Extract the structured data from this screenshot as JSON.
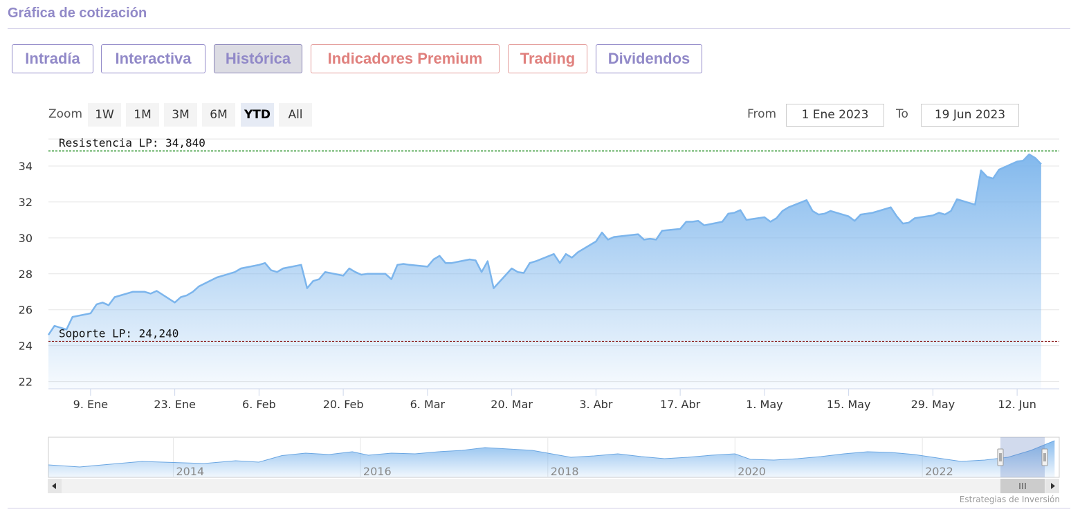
{
  "header": {
    "title": "Gráfica de cotización"
  },
  "tabs": [
    {
      "label": "Intradía",
      "style": "normal"
    },
    {
      "label": "Interactiva",
      "style": "normal"
    },
    {
      "label": "Histórica",
      "style": "active"
    },
    {
      "label": "Indicadores Premium",
      "style": "premium"
    },
    {
      "label": "Trading",
      "style": "premium"
    },
    {
      "label": "Dividendos",
      "style": "normal"
    }
  ],
  "range_selector": {
    "zoom_label": "Zoom",
    "buttons": [
      "1W",
      "1M",
      "3M",
      "6M",
      "YTD",
      "All"
    ],
    "selected": "YTD",
    "from_label": "From",
    "from_value": "1 Ene 2023",
    "to_label": "To",
    "to_value": "19 Jun 2023"
  },
  "credit": "Estrategias de Inversión",
  "colors": {
    "accent": "#9189c8",
    "premium": "#e0807d",
    "series_line": "#7cb5ec",
    "resistance": "#1a8a1a",
    "support": "#8b1a1a"
  },
  "chart_data": {
    "type": "area",
    "title": "",
    "xlabel": "",
    "ylabel": "",
    "ylim": [
      21.6,
      35.5
    ],
    "yticks": [
      22,
      24,
      26,
      28,
      30,
      32,
      34
    ],
    "x_start": "2023-01-02",
    "x_end": "2023-06-19",
    "xtick_labels": [
      {
        "date": "2023-01-09",
        "label": "9. Ene"
      },
      {
        "date": "2023-01-23",
        "label": "23. Ene"
      },
      {
        "date": "2023-02-06",
        "label": "6. Feb"
      },
      {
        "date": "2023-02-20",
        "label": "20. Feb"
      },
      {
        "date": "2023-03-06",
        "label": "6. Mar"
      },
      {
        "date": "2023-03-20",
        "label": "20. Mar"
      },
      {
        "date": "2023-04-03",
        "label": "3. Abr"
      },
      {
        "date": "2023-04-17",
        "label": "17. Abr"
      },
      {
        "date": "2023-05-01",
        "label": "1. May"
      },
      {
        "date": "2023-05-15",
        "label": "15. May"
      },
      {
        "date": "2023-05-29",
        "label": "29. May"
      },
      {
        "date": "2023-06-12",
        "label": "12. Jun"
      }
    ],
    "plot_lines": [
      {
        "label": "Resistencia LP: 34,840",
        "value": 34.84,
        "color": "#1a8a1a"
      },
      {
        "label": "Soporte LP: 24,240",
        "value": 24.24,
        "color": "#8b1a1a"
      }
    ],
    "series": [
      {
        "values": [
          [
            "2023-01-02",
            24.6
          ],
          [
            "2023-01-03",
            25.1
          ],
          [
            "2023-01-04",
            25.0
          ],
          [
            "2023-01-05",
            24.9
          ],
          [
            "2023-01-06",
            25.6
          ],
          [
            "2023-01-09",
            25.8
          ],
          [
            "2023-01-10",
            26.3
          ],
          [
            "2023-01-11",
            26.4
          ],
          [
            "2023-01-12",
            26.25
          ],
          [
            "2023-01-13",
            26.7
          ],
          [
            "2023-01-16",
            27.0
          ],
          [
            "2023-01-17",
            27.0
          ],
          [
            "2023-01-18",
            27.0
          ],
          [
            "2023-01-19",
            26.9
          ],
          [
            "2023-01-20",
            27.05
          ],
          [
            "2023-01-23",
            26.4
          ],
          [
            "2023-01-24",
            26.7
          ],
          [
            "2023-01-25",
            26.8
          ],
          [
            "2023-01-26",
            27.0
          ],
          [
            "2023-01-27",
            27.3
          ],
          [
            "2023-01-30",
            27.8
          ],
          [
            "2023-01-31",
            27.9
          ],
          [
            "2023-02-01",
            28.0
          ],
          [
            "2023-02-02",
            28.1
          ],
          [
            "2023-02-03",
            28.3
          ],
          [
            "2023-02-06",
            28.5
          ],
          [
            "2023-02-07",
            28.6
          ],
          [
            "2023-02-08",
            28.2
          ],
          [
            "2023-02-09",
            28.1
          ],
          [
            "2023-02-10",
            28.3
          ],
          [
            "2023-02-13",
            28.5
          ],
          [
            "2023-02-14",
            27.2
          ],
          [
            "2023-02-15",
            27.6
          ],
          [
            "2023-02-16",
            27.7
          ],
          [
            "2023-02-17",
            28.1
          ],
          [
            "2023-02-20",
            27.9
          ],
          [
            "2023-02-21",
            28.3
          ],
          [
            "2023-02-22",
            28.1
          ],
          [
            "2023-02-23",
            27.95
          ],
          [
            "2023-02-24",
            28.0
          ],
          [
            "2023-02-27",
            28.0
          ],
          [
            "2023-02-28",
            27.7
          ],
          [
            "2023-03-01",
            28.5
          ],
          [
            "2023-03-02",
            28.55
          ],
          [
            "2023-03-03",
            28.5
          ],
          [
            "2023-03-06",
            28.4
          ],
          [
            "2023-03-07",
            28.8
          ],
          [
            "2023-03-08",
            29.0
          ],
          [
            "2023-03-09",
            28.6
          ],
          [
            "2023-03-10",
            28.6
          ],
          [
            "2023-03-13",
            28.8
          ],
          [
            "2023-03-14",
            28.75
          ],
          [
            "2023-03-15",
            28.1
          ],
          [
            "2023-03-16",
            28.7
          ],
          [
            "2023-03-17",
            27.2
          ],
          [
            "2023-03-20",
            28.3
          ],
          [
            "2023-03-21",
            28.1
          ],
          [
            "2023-03-22",
            28.05
          ],
          [
            "2023-03-23",
            28.6
          ],
          [
            "2023-03-24",
            28.7
          ],
          [
            "2023-03-27",
            29.1
          ],
          [
            "2023-03-28",
            28.6
          ],
          [
            "2023-03-29",
            29.1
          ],
          [
            "2023-03-30",
            28.9
          ],
          [
            "2023-03-31",
            29.2
          ],
          [
            "2023-04-03",
            29.8
          ],
          [
            "2023-04-04",
            30.3
          ],
          [
            "2023-04-05",
            29.9
          ],
          [
            "2023-04-06",
            30.05
          ],
          [
            "2023-04-10",
            30.2
          ],
          [
            "2023-04-11",
            29.9
          ],
          [
            "2023-04-12",
            29.95
          ],
          [
            "2023-04-13",
            29.9
          ],
          [
            "2023-04-14",
            30.4
          ],
          [
            "2023-04-17",
            30.5
          ],
          [
            "2023-04-18",
            30.9
          ],
          [
            "2023-04-19",
            30.9
          ],
          [
            "2023-04-20",
            30.95
          ],
          [
            "2023-04-21",
            30.7
          ],
          [
            "2023-04-24",
            30.9
          ],
          [
            "2023-04-25",
            31.35
          ],
          [
            "2023-04-26",
            31.4
          ],
          [
            "2023-04-27",
            31.55
          ],
          [
            "2023-04-28",
            31.0
          ],
          [
            "2023-05-01",
            31.15
          ],
          [
            "2023-05-02",
            30.9
          ],
          [
            "2023-05-03",
            31.1
          ],
          [
            "2023-05-04",
            31.5
          ],
          [
            "2023-05-05",
            31.7
          ],
          [
            "2023-05-08",
            32.1
          ],
          [
            "2023-05-09",
            31.5
          ],
          [
            "2023-05-10",
            31.3
          ],
          [
            "2023-05-11",
            31.35
          ],
          [
            "2023-05-12",
            31.5
          ],
          [
            "2023-05-15",
            31.2
          ],
          [
            "2023-05-16",
            30.95
          ],
          [
            "2023-05-17",
            31.3
          ],
          [
            "2023-05-18",
            31.35
          ],
          [
            "2023-05-19",
            31.4
          ],
          [
            "2023-05-22",
            31.7
          ],
          [
            "2023-05-23",
            31.2
          ],
          [
            "2023-05-24",
            30.8
          ],
          [
            "2023-05-25",
            30.85
          ],
          [
            "2023-05-26",
            31.1
          ],
          [
            "2023-05-29",
            31.25
          ],
          [
            "2023-05-30",
            31.4
          ],
          [
            "2023-05-31",
            31.3
          ],
          [
            "2023-06-01",
            31.5
          ],
          [
            "2023-06-02",
            32.15
          ],
          [
            "2023-06-05",
            31.85
          ],
          [
            "2023-06-06",
            33.75
          ],
          [
            "2023-06-07",
            33.4
          ],
          [
            "2023-06-08",
            33.3
          ],
          [
            "2023-06-09",
            33.8
          ],
          [
            "2023-06-12",
            34.25
          ],
          [
            "2023-06-13",
            34.3
          ],
          [
            "2023-06-14",
            34.65
          ],
          [
            "2023-06-15",
            34.45
          ],
          [
            "2023-06-16",
            34.1
          ]
        ]
      }
    ],
    "navigator": {
      "x_start": "2012-09-01",
      "x_end": "2023-06-19",
      "year_labels": [
        "2014",
        "2016",
        "2018",
        "2020",
        "2022"
      ],
      "selection": [
        "2023-01-02",
        "2023-06-19"
      ],
      "values": [
        [
          "2012-09",
          0.28
        ],
        [
          "2013-01",
          0.22
        ],
        [
          "2013-05",
          0.3
        ],
        [
          "2013-09",
          0.38
        ],
        [
          "2014-01",
          0.35
        ],
        [
          "2014-05",
          0.32
        ],
        [
          "2014-09",
          0.4
        ],
        [
          "2014-12",
          0.36
        ],
        [
          "2015-03",
          0.55
        ],
        [
          "2015-06",
          0.62
        ],
        [
          "2015-09",
          0.58
        ],
        [
          "2015-12",
          0.66
        ],
        [
          "2016-02",
          0.56
        ],
        [
          "2016-05",
          0.62
        ],
        [
          "2016-08",
          0.6
        ],
        [
          "2016-11",
          0.66
        ],
        [
          "2017-02",
          0.7
        ],
        [
          "2017-05",
          0.78
        ],
        [
          "2017-08",
          0.74
        ],
        [
          "2017-11",
          0.7
        ],
        [
          "2018-01",
          0.62
        ],
        [
          "2018-04",
          0.5
        ],
        [
          "2018-07",
          0.54
        ],
        [
          "2018-10",
          0.6
        ],
        [
          "2019-01",
          0.52
        ],
        [
          "2019-04",
          0.46
        ],
        [
          "2019-07",
          0.5
        ],
        [
          "2019-10",
          0.56
        ],
        [
          "2020-01",
          0.6
        ],
        [
          "2020-03",
          0.44
        ],
        [
          "2020-06",
          0.42
        ],
        [
          "2020-09",
          0.46
        ],
        [
          "2020-12",
          0.52
        ],
        [
          "2021-03",
          0.6
        ],
        [
          "2021-06",
          0.66
        ],
        [
          "2021-09",
          0.64
        ],
        [
          "2021-12",
          0.58
        ],
        [
          "2022-03",
          0.48
        ],
        [
          "2022-06",
          0.38
        ],
        [
          "2022-09",
          0.42
        ],
        [
          "2022-12",
          0.5
        ],
        [
          "2023-03",
          0.7
        ],
        [
          "2023-06",
          0.98
        ]
      ]
    }
  }
}
